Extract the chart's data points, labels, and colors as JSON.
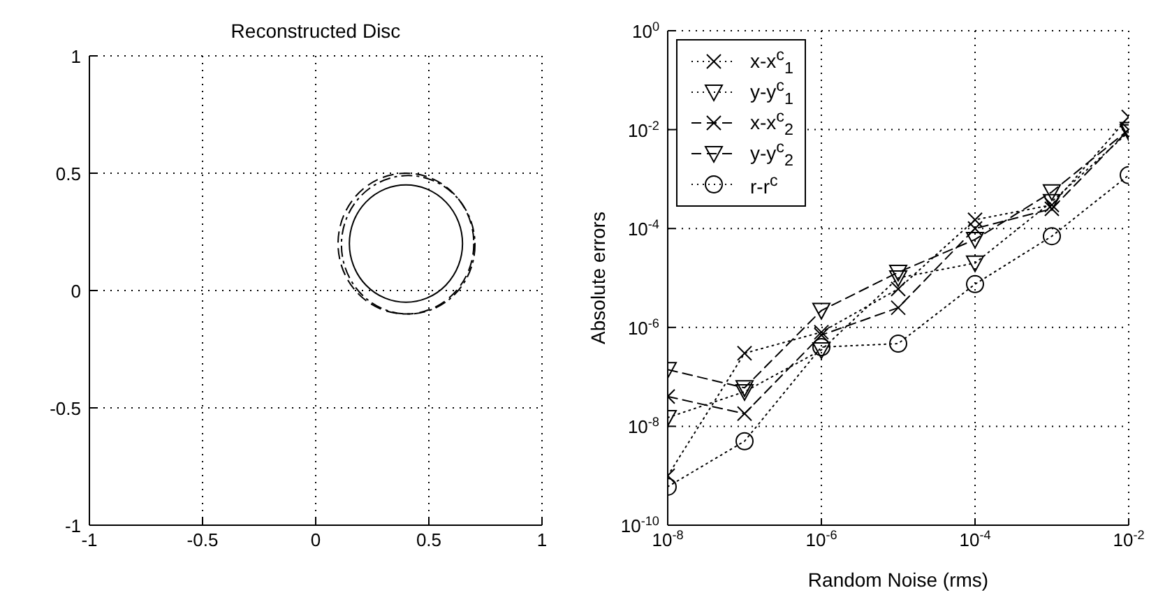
{
  "chart_data": [
    {
      "type": "line",
      "title": "Reconstructed Disc",
      "xlim": [
        -1,
        1
      ],
      "ylim": [
        -1,
        1
      ],
      "xticks": [
        -1,
        -0.5,
        0,
        0.5,
        1
      ],
      "yticks": [
        -1,
        -0.5,
        0,
        0.5,
        1
      ],
      "grid": true
    },
    {
      "type": "line",
      "xlabel": "Random Noise (rms)",
      "ylabel": "Absolute errors",
      "log": "xy",
      "grid": true,
      "legend": "top left",
      "x": [
        1e-08,
        1e-07,
        1e-06,
        1e-05,
        0.0001,
        0.001,
        0.01
      ],
      "xlim": [
        1e-08,
        0.01
      ],
      "ylim": [
        1e-10,
        1
      ],
      "xticks": [
        {
          "value": 1e-08,
          "label": "10$^{-8}$"
        },
        {
          "value": 1e-06,
          "label": "10$^{-6}$"
        },
        {
          "value": 0.0001,
          "label": "10$^{-4}$"
        },
        {
          "value": 0.01,
          "label": "10$^{-2}$"
        }
      ],
      "yticks": [
        {
          "value": 1e-10,
          "label": "10$^{-10}$"
        },
        {
          "value": 1e-08,
          "label": "10$^{-8}$"
        },
        {
          "value": 1e-06,
          "label": "10$^{-6}$"
        },
        {
          "value": 0.0001,
          "label": "10$^{-4}$"
        },
        {
          "value": 0.01,
          "label": "10$^{-2}$"
        },
        {
          "value": 1,
          "label": "10$^{0}$"
        }
      ],
      "series": [
        {
          "name": "x-x$^{c}$$_{1}$",
          "color": "#000000",
          "marker": "cross",
          "line_style": "dotted",
          "values": [
            1e-09,
            3e-07,
            8e-07,
            6e-06,
            0.00015,
            0.0003,
            0.018
          ]
        },
        {
          "name": "y-y$^{c}$$_{1}$",
          "color": "#000000",
          "marker": "triangle",
          "line_style": "dotted",
          "values": [
            1.5e-08,
            5e-08,
            3.5e-07,
            1e-05,
            2e-05,
            0.00035,
            0.009
          ]
        },
        {
          "name": "x-x$^{c}$$_{2}$",
          "color": "#000000",
          "marker": "cross",
          "line_style": "dashed",
          "values": [
            4e-08,
            1.8e-08,
            7e-07,
            2.5e-06,
            0.0001,
            0.00025,
            0.01
          ]
        },
        {
          "name": "y-y$^{c}$$_{2}$",
          "color": "#000000",
          "marker": "triangle",
          "line_style": "dashed",
          "values": [
            1.4e-07,
            6e-08,
            2.2e-06,
            1.3e-05,
            6e-05,
            0.00055,
            0.01
          ]
        },
        {
          "name": "r-r$^{c}$",
          "color": "#000000",
          "marker": "circle",
          "line_style": "dotted",
          "values": [
            6e-10,
            5e-09,
            4e-07,
            4.7e-07,
            7.5e-06,
            7e-05,
            0.0012
          ]
        }
      ]
    }
  ]
}
